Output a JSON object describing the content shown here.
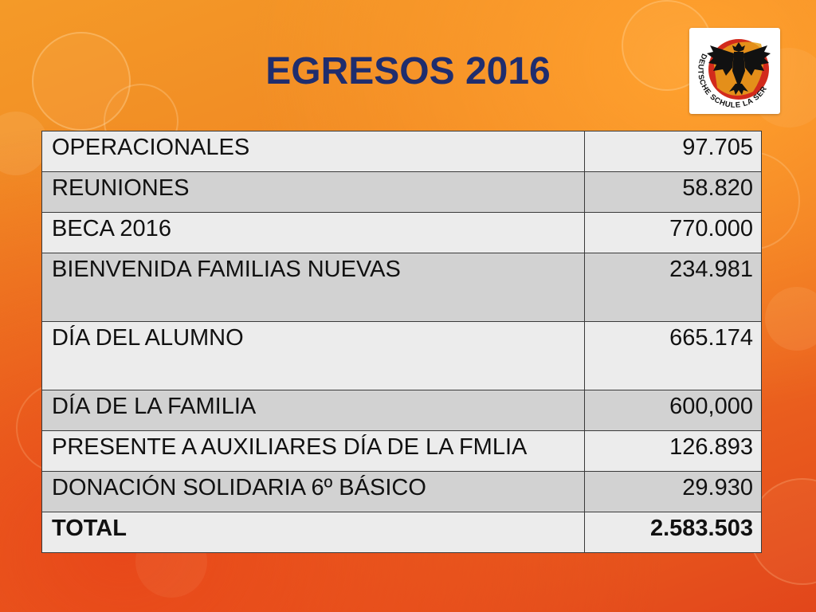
{
  "slide": {
    "title": "EGRESOS 2016"
  },
  "logo": {
    "icon": "eagle-icon",
    "text": "DEUTSCHE SCHULE LA SERENA"
  },
  "table": {
    "rows": [
      {
        "label": "OPERACIONALES",
        "value": "97.705"
      },
      {
        "label": "REUNIONES",
        "value": "58.820"
      },
      {
        "label": "BECA 2016",
        "value": "770.000"
      },
      {
        "label": "BIENVENIDA FAMILIAS NUEVAS",
        "value": "234.981"
      },
      {
        "label": "DÍA DEL ALUMNO",
        "value": "665.174"
      },
      {
        "label": "DÍA DE LA FAMILIA",
        "value": "600,000"
      },
      {
        "label": "PRESENTE A AUXILIARES DÍA DE LA FMLIA",
        "value": "126.893"
      },
      {
        "label": "DONACIÓN SOLIDARIA 6º BÁSICO",
        "value": "29.930"
      }
    ],
    "total": {
      "label": "TOTAL",
      "value": "2.583.503"
    }
  }
}
